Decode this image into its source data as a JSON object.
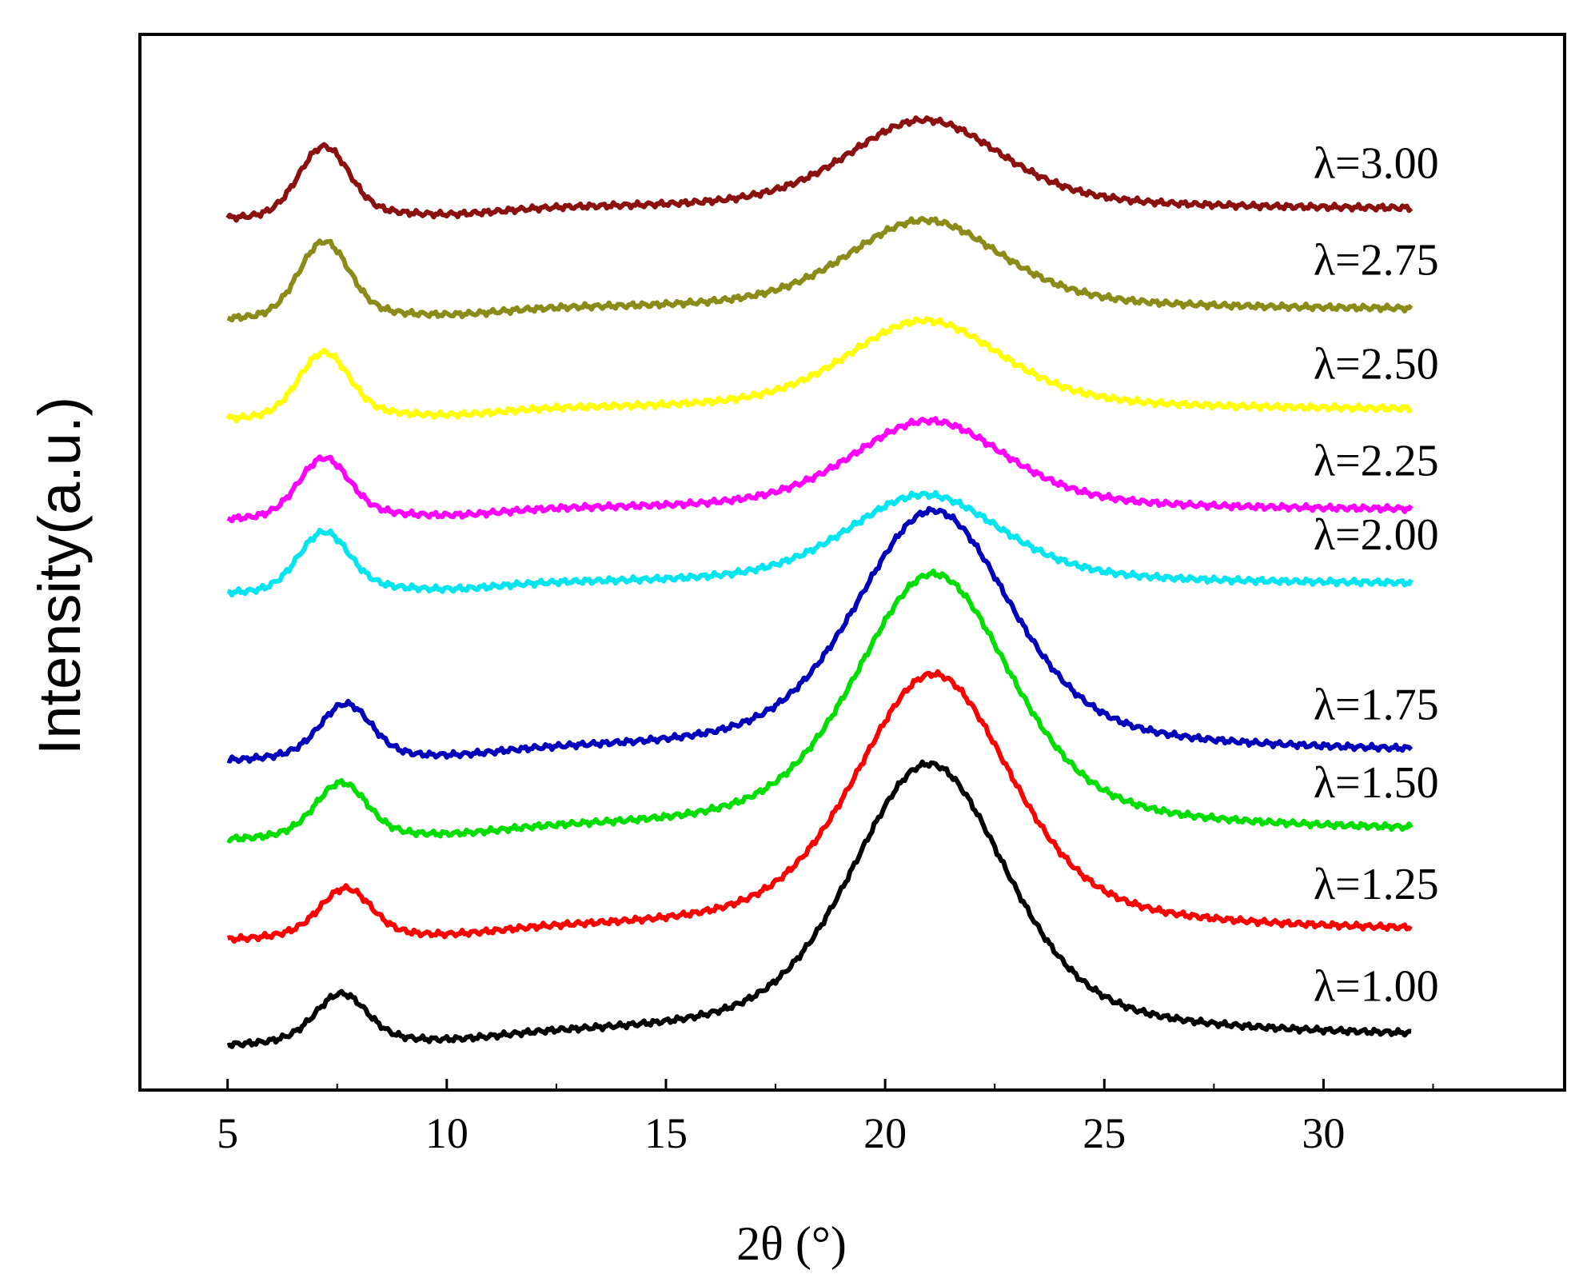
{
  "chart_data": {
    "type": "line",
    "title": "",
    "xlabel": "2θ (°)",
    "ylabel": "Intensity(a.u.)",
    "xlim": [
      3,
      35.5
    ],
    "ylim": [
      0,
      100
    ],
    "x_ticks": [
      5,
      10,
      15,
      20,
      25,
      30
    ],
    "x_tick_labels": [
      "5",
      "10",
      "15",
      "20",
      "25",
      "30"
    ],
    "legend": "inline labels at right end of each curve",
    "grid": false,
    "series": [
      {
        "name": "λ=1.00",
        "color": "#000000",
        "y_offset": 4.0,
        "peak1": 4.0,
        "peak1_x": 7.6,
        "peak2": 26.0,
        "peak2_x": 21.0
      },
      {
        "name": "λ=1.25",
        "color": "#ff0000",
        "y_offset": 14.0,
        "peak1": 4.0,
        "peak1_x": 7.7,
        "peak2": 24.5,
        "peak2_x": 21.1
      },
      {
        "name": "λ=1.50",
        "color": "#00dd00",
        "y_offset": 23.5,
        "peak1": 4.5,
        "peak1_x": 7.6,
        "peak2": 24.5,
        "peak2_x": 21.1
      },
      {
        "name": "λ=1.75",
        "color": "#0000bb",
        "y_offset": 31.0,
        "peak1": 4.5,
        "peak1_x": 7.7,
        "peak2": 23.0,
        "peak2_x": 21.1
      },
      {
        "name": "λ=2.00",
        "color": "#00e5ee",
        "y_offset": 47.0,
        "peak1": 5.0,
        "peak1_x": 7.2,
        "peak2": 8.5,
        "peak2_x": 20.9
      },
      {
        "name": "λ=2.25",
        "color": "#ff00ff",
        "y_offset": 54.0,
        "peak1": 5.0,
        "peak1_x": 7.2,
        "peak2": 8.5,
        "peak2_x": 21.0
      },
      {
        "name": "λ=2.50",
        "color": "#ffff00",
        "y_offset": 63.5,
        "peak1": 5.5,
        "peak1_x": 7.2,
        "peak2": 8.5,
        "peak2_x": 20.9
      },
      {
        "name": "λ=2.75",
        "color": "#8b8b1a",
        "y_offset": 73.0,
        "peak1": 6.5,
        "peak1_x": 7.2,
        "peak2": 8.5,
        "peak2_x": 20.9
      },
      {
        "name": "λ=3.00",
        "color": "#8b1010",
        "y_offset": 82.5,
        "peak1": 6.0,
        "peak1_x": 7.2,
        "peak2": 8.5,
        "peak2_x": 20.9
      }
    ]
  }
}
